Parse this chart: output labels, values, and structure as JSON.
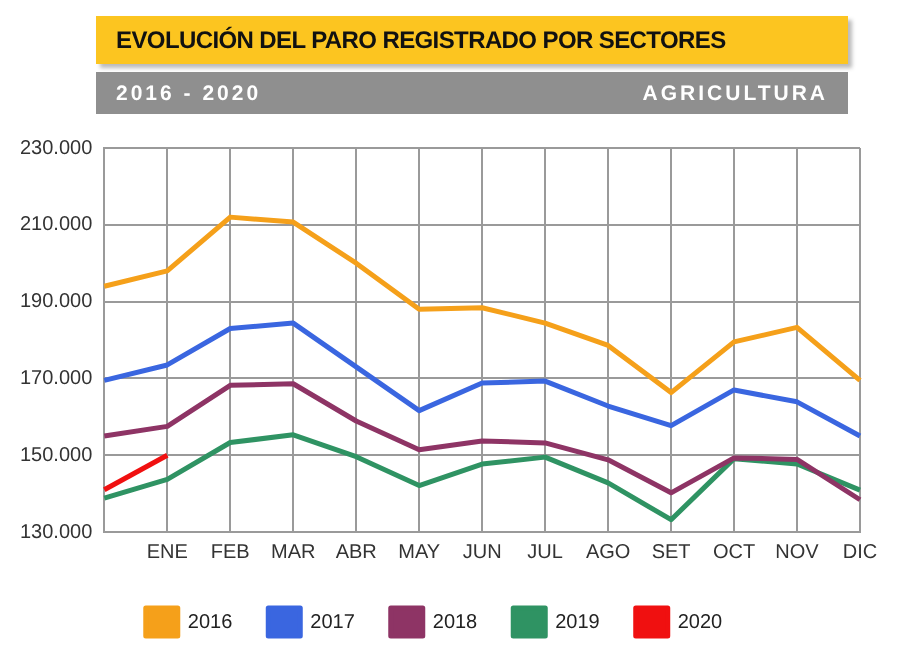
{
  "chart_data": {
    "type": "line",
    "title": "EVOLUCIÓN DEL PARO REGISTRADO POR SECTORES",
    "subtitle": "2016 - 2020",
    "annotations": [
      "AGRICULTURA"
    ],
    "categories": [
      null,
      "ENE",
      "FEB",
      "MAR",
      "ABR",
      "MAY",
      "JUN",
      "JUL",
      "AGO",
      "SET",
      "OCT",
      "NOV",
      "DIC"
    ],
    "series": [
      {
        "name": "2016",
        "color": "#f5a01a",
        "values": [
          194000,
          198000,
          212000,
          210700,
          200000,
          188000,
          188400,
          184400,
          178600,
          166300,
          179500,
          183300,
          169500
        ]
      },
      {
        "name": "2017",
        "color": "#3a66e0",
        "values": [
          169500,
          173500,
          183000,
          184400,
          173000,
          161600,
          168800,
          169300,
          162800,
          157700,
          167000,
          163900,
          155000
        ]
      },
      {
        "name": "2018",
        "color": "#8e3465",
        "values": [
          155000,
          157500,
          168200,
          168600,
          158900,
          151400,
          153700,
          153200,
          148800,
          140200,
          149300,
          148900,
          138400
        ]
      },
      {
        "name": "2019",
        "color": "#2f9363",
        "values": [
          138800,
          143700,
          153300,
          155300,
          149600,
          142100,
          147700,
          149500,
          142800,
          133200,
          149100,
          147700,
          140900
        ]
      },
      {
        "name": "2020",
        "color": "#f01010",
        "values": [
          141000,
          150000,
          null,
          null,
          null,
          null,
          null,
          null,
          null,
          null,
          null,
          null,
          null
        ]
      }
    ],
    "ylim": [
      130000,
      230000
    ],
    "yticks": [
      {
        "value": 130000,
        "label": "130.000"
      },
      {
        "value": 150000,
        "label": "150.000"
      },
      {
        "value": 170000,
        "label": "170.000"
      },
      {
        "value": 190000,
        "label": "190.000"
      },
      {
        "value": 210000,
        "label": "210.000"
      },
      {
        "value": 230000,
        "label": "230.000"
      }
    ],
    "grid": true,
    "legend": "bottom",
    "marker": "none",
    "line_style": "solid"
  }
}
